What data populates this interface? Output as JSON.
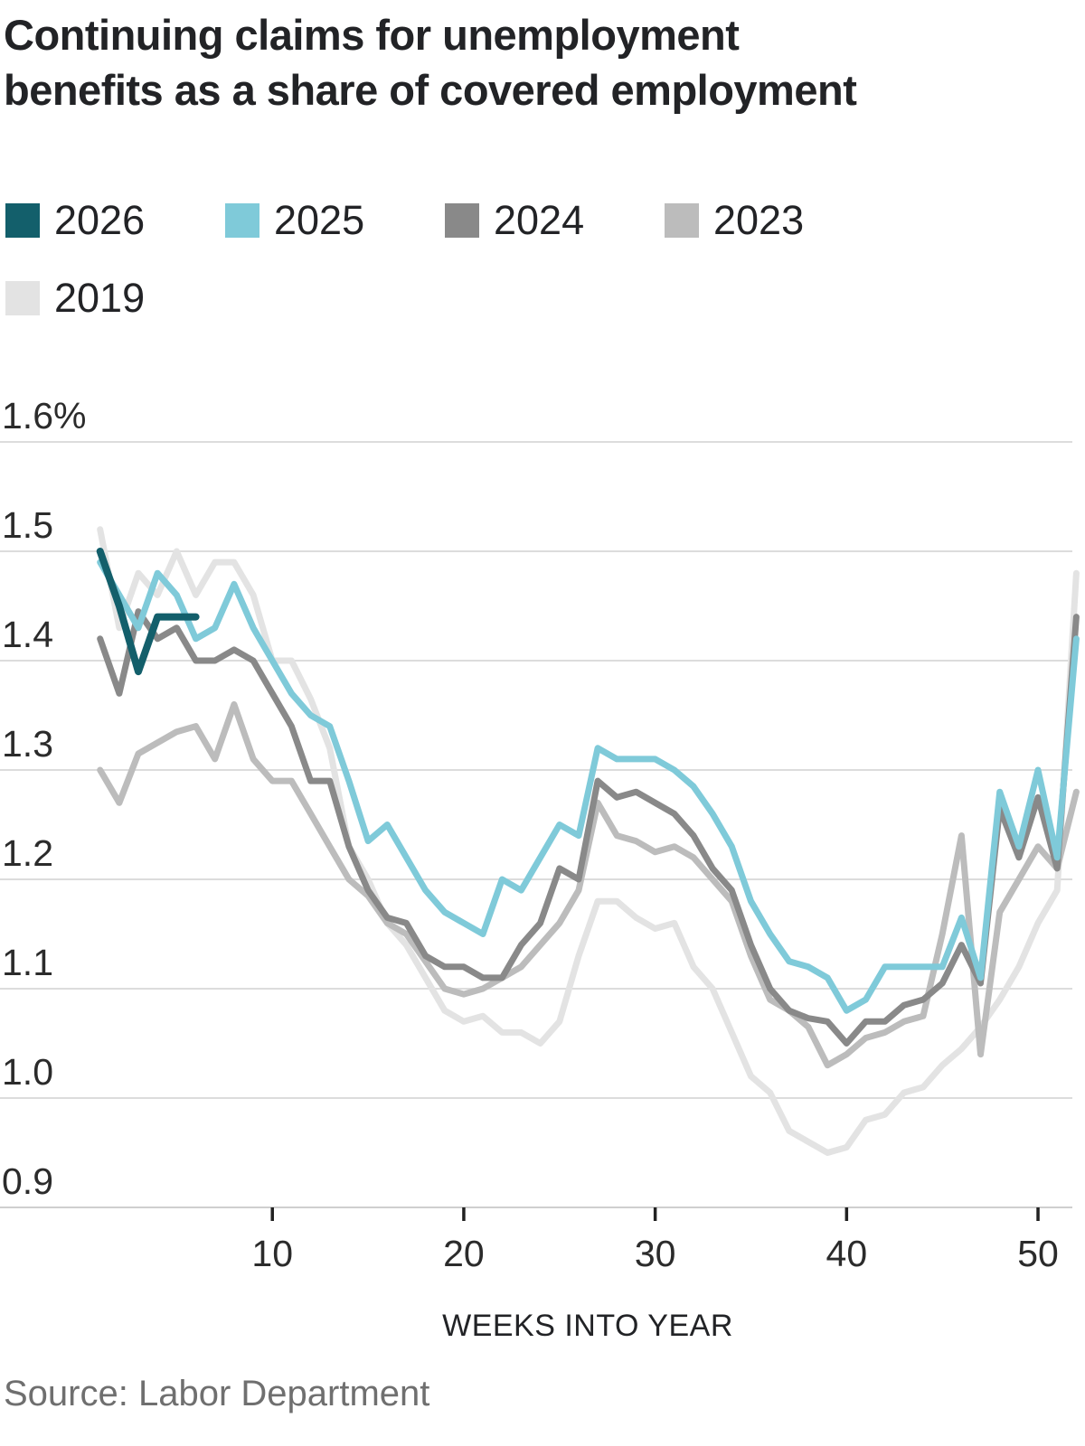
{
  "title": {
    "line1": "Continuing claims for unemployment",
    "line2": "benefits as a share of covered employment"
  },
  "source": "Source: Labor Department",
  "chart_data": {
    "type": "line",
    "xlabel": "WEEKS INTO YEAR",
    "ylabel": "",
    "xlim": [
      1,
      52
    ],
    "ylim": [
      0.9,
      1.6
    ],
    "grid": "horizontal",
    "legend_position": "top-left",
    "x_ticks": [
      10,
      20,
      30,
      40,
      50
    ],
    "y_ticks": [
      {
        "value": 1.6,
        "label": "1.6%"
      },
      {
        "value": 1.5,
        "label": "1.5"
      },
      {
        "value": 1.4,
        "label": "1.4"
      },
      {
        "value": 1.3,
        "label": "1.3"
      },
      {
        "value": 1.2,
        "label": "1.2"
      },
      {
        "value": 1.1,
        "label": "1.1"
      },
      {
        "value": 1.0,
        "label": "1.0"
      },
      {
        "value": 0.9,
        "label": "0.9"
      }
    ],
    "series": [
      {
        "name": "2019",
        "color": "#e3e3e3",
        "start_week": 1,
        "values": [
          1.52,
          1.43,
          1.48,
          1.46,
          1.5,
          1.46,
          1.49,
          1.49,
          1.46,
          1.4,
          1.4,
          1.365,
          1.32,
          1.23,
          1.2,
          1.16,
          1.14,
          1.11,
          1.08,
          1.07,
          1.075,
          1.06,
          1.06,
          1.05,
          1.07,
          1.13,
          1.18,
          1.18,
          1.165,
          1.155,
          1.16,
          1.12,
          1.1,
          1.06,
          1.02,
          1.005,
          0.97,
          0.96,
          0.95,
          0.955,
          0.98,
          0.985,
          1.005,
          1.01,
          1.03,
          1.045,
          1.065,
          1.09,
          1.12,
          1.16,
          1.19,
          1.48
        ]
      },
      {
        "name": "2023",
        "color": "#bcbcbc",
        "start_week": 1,
        "values": [
          1.3,
          1.27,
          1.315,
          1.325,
          1.335,
          1.34,
          1.31,
          1.36,
          1.31,
          1.29,
          1.29,
          1.26,
          1.23,
          1.2,
          1.185,
          1.16,
          1.15,
          1.125,
          1.1,
          1.095,
          1.1,
          1.11,
          1.12,
          1.14,
          1.16,
          1.19,
          1.27,
          1.24,
          1.235,
          1.225,
          1.23,
          1.22,
          1.2,
          1.18,
          1.13,
          1.09,
          1.08,
          1.065,
          1.03,
          1.04,
          1.055,
          1.06,
          1.07,
          1.075,
          1.15,
          1.24,
          1.04,
          1.17,
          1.2,
          1.23,
          1.21,
          1.28
        ]
      },
      {
        "name": "2024",
        "color": "#898989",
        "start_week": 1,
        "values": [
          1.42,
          1.37,
          1.445,
          1.42,
          1.43,
          1.4,
          1.4,
          1.41,
          1.4,
          1.37,
          1.34,
          1.29,
          1.29,
          1.23,
          1.19,
          1.165,
          1.16,
          1.13,
          1.12,
          1.12,
          1.11,
          1.11,
          1.14,
          1.16,
          1.21,
          1.2,
          1.29,
          1.275,
          1.28,
          1.27,
          1.26,
          1.24,
          1.21,
          1.19,
          1.14,
          1.1,
          1.08,
          1.073,
          1.07,
          1.05,
          1.07,
          1.07,
          1.085,
          1.09,
          1.105,
          1.14,
          1.105,
          1.265,
          1.22,
          1.275,
          1.21,
          1.44
        ]
      },
      {
        "name": "2025",
        "color": "#7fcad9",
        "start_week": 1,
        "values": [
          1.49,
          1.46,
          1.43,
          1.48,
          1.46,
          1.42,
          1.43,
          1.47,
          1.43,
          1.4,
          1.37,
          1.35,
          1.34,
          1.29,
          1.235,
          1.25,
          1.22,
          1.19,
          1.17,
          1.16,
          1.15,
          1.2,
          1.19,
          1.22,
          1.25,
          1.24,
          1.32,
          1.31,
          1.31,
          1.31,
          1.3,
          1.285,
          1.26,
          1.23,
          1.18,
          1.15,
          1.125,
          1.12,
          1.11,
          1.08,
          1.09,
          1.12,
          1.12,
          1.12,
          1.12,
          1.165,
          1.11,
          1.28,
          1.23,
          1.3,
          1.22,
          1.42
        ]
      },
      {
        "name": "2026",
        "color": "#135f6b",
        "start_week": 1,
        "values": [
          1.5,
          1.45,
          1.39,
          1.44,
          1.44,
          1.44
        ]
      }
    ],
    "legend_order": [
      "2026",
      "2025",
      "2024",
      "2023",
      "2019"
    ]
  }
}
